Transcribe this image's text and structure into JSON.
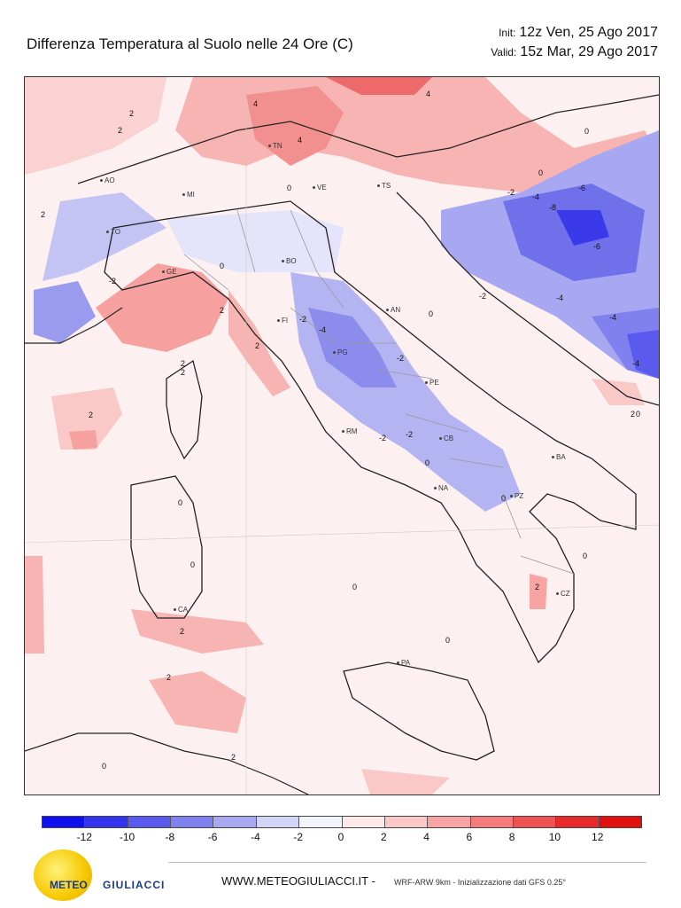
{
  "header": {
    "title": "Differenza Temperatura al Suolo nelle 24 Ore   (C)",
    "init_label": "Init:",
    "init_value": "12z Ven, 25 Ago 2017",
    "valid_label": "Valid:",
    "valid_value": "15z Mar, 29 Ago 2017"
  },
  "map": {
    "cities": [
      {
        "name": "AO"
      },
      {
        "name": "TO"
      },
      {
        "name": "MI"
      },
      {
        "name": "VE"
      },
      {
        "name": "TN"
      },
      {
        "name": "TS"
      },
      {
        "name": "GE"
      },
      {
        "name": "BO"
      },
      {
        "name": "FI"
      },
      {
        "name": "PG"
      },
      {
        "name": "AN"
      },
      {
        "name": "PE"
      },
      {
        "name": "RM"
      },
      {
        "name": "CB"
      },
      {
        "name": "NA"
      },
      {
        "name": "BA"
      },
      {
        "name": "PZ"
      },
      {
        "name": "CZ"
      },
      {
        "name": "PA"
      },
      {
        "name": "CA"
      }
    ],
    "contour_labels": [
      "2",
      "2",
      "2",
      "4",
      "4",
      "4",
      "0",
      "0",
      "-2",
      "-4",
      "-6",
      "-8",
      "-6",
      "-2",
      "-4",
      "-4",
      "-4",
      "0",
      "-2",
      "2",
      "2",
      "0",
      "-2",
      "-4",
      "0",
      "-2",
      "-2",
      "-2",
      "0",
      "2",
      "2",
      "0",
      "0",
      "2",
      "0",
      "2",
      "0",
      "0",
      "2",
      "0",
      "2",
      "2",
      "0",
      "2",
      "0"
    ]
  },
  "colorbar": {
    "colors": [
      "#1010ee",
      "#3434ee",
      "#5a5aee",
      "#8080ee",
      "#a8a8f2",
      "#d4d4f8",
      "#f4f4fc",
      "#fde9e9",
      "#fbc8c8",
      "#f8a4a4",
      "#f47c7c",
      "#ee5252",
      "#e82a2a",
      "#e01010"
    ],
    "ticks": [
      "-12",
      "-10",
      "-8",
      "-6",
      "-4",
      "-2",
      "0",
      "2",
      "4",
      "6",
      "8",
      "10",
      "12"
    ]
  },
  "footer": {
    "logo_part1": "METEO",
    "logo_part2": "GIULIACCI",
    "url": "WWW.METEOGIULIACCI.IT -",
    "model": "WRF-ARW 9km - Inizializzazione dati GFS 0.25°"
  }
}
